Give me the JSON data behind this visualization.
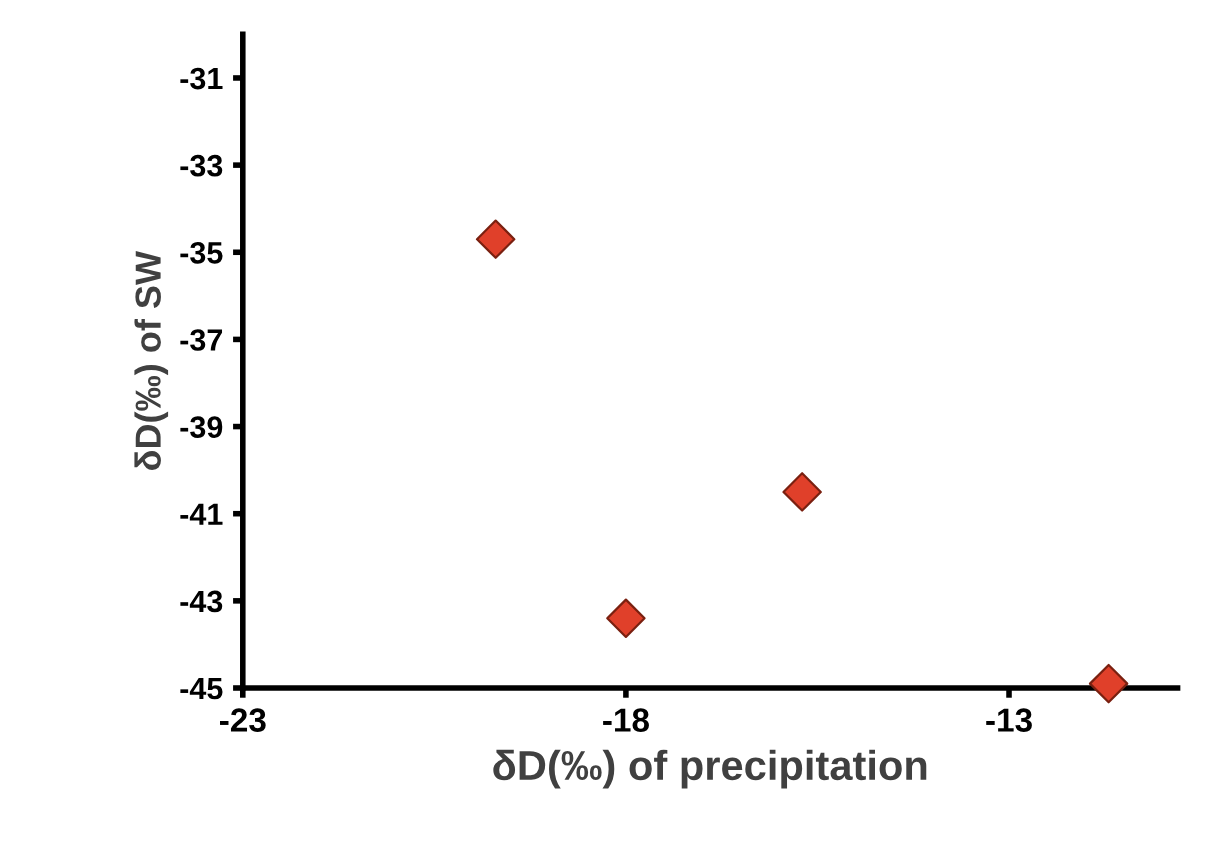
{
  "chart_data": {
    "type": "scatter",
    "xlabel": "δD(‰) of precipitation",
    "ylabel": "δD(‰) of SW",
    "x": [
      -19.7,
      -18.0,
      -15.7,
      -11.7
    ],
    "values": [
      -34.7,
      -43.4,
      -40.5,
      -44.9
    ],
    "color": "#e0402a",
    "marker": "diamond",
    "xlim": [
      -23,
      -10.8
    ],
    "xticks": [
      -23,
      -18,
      -13
    ],
    "ylim": [
      -45,
      -30
    ],
    "yticks": [
      -31,
      -33,
      -35,
      -37,
      -39,
      -41,
      -43,
      -45
    ],
    "grid": false,
    "legend": false
  }
}
